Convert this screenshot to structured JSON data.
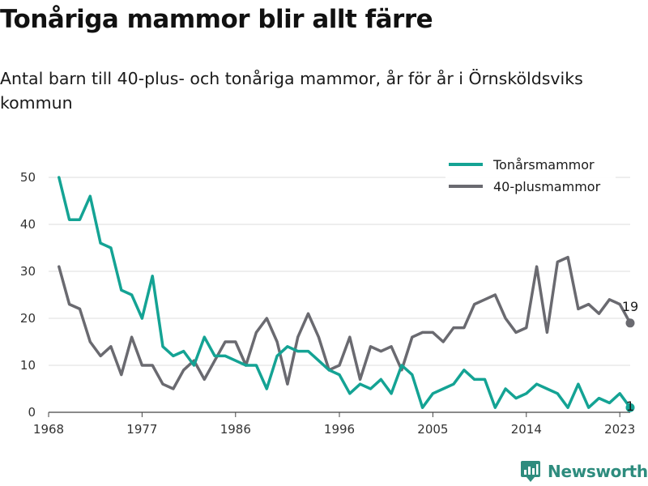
{
  "title": "Tonåriga mammor blir allt färre",
  "subtitle": "Antal barn till 40-plus- och tonåriga mammor, år för år i Örnsköldsviks kommun",
  "brand": "Newsworthy",
  "colors": {
    "teen": "#14a394",
    "forty": "#6a6a70",
    "grid": "#dcdcdc",
    "brand": "#2e8c7e"
  },
  "chart_data": {
    "type": "line",
    "title": "Tonåriga mammor blir allt färre",
    "subtitle": "Antal barn till 40-plus- och tonåriga mammor, år för år i Örnsköldsviks kommun",
    "xlabel": "",
    "ylabel": "",
    "ylim": [
      0,
      50
    ],
    "xlim": [
      1968,
      2024
    ],
    "x_ticks": [
      1968,
      1977,
      1986,
      1996,
      2005,
      2014,
      2023
    ],
    "y_ticks": [
      0,
      10,
      20,
      30,
      40,
      50
    ],
    "grid": true,
    "legend_position": "top-right",
    "x": [
      1969,
      1970,
      1971,
      1972,
      1973,
      1974,
      1975,
      1976,
      1977,
      1978,
      1979,
      1980,
      1981,
      1982,
      1983,
      1984,
      1985,
      1986,
      1987,
      1988,
      1989,
      1990,
      1991,
      1992,
      1993,
      1994,
      1995,
      1996,
      1997,
      1998,
      1999,
      2000,
      2001,
      2002,
      2003,
      2004,
      2005,
      2006,
      2007,
      2008,
      2009,
      2010,
      2011,
      2012,
      2013,
      2014,
      2015,
      2016,
      2017,
      2018,
      2019,
      2020,
      2021,
      2022,
      2023,
      2024
    ],
    "series": [
      {
        "name": "Tonårsmammor",
        "color": "#14a394",
        "values": [
          50,
          41,
          41,
          46,
          36,
          35,
          26,
          25,
          20,
          29,
          14,
          12,
          13,
          10,
          16,
          12,
          12,
          11,
          10,
          10,
          5,
          12,
          14,
          13,
          13,
          11,
          9,
          8,
          4,
          6,
          5,
          7,
          4,
          10,
          8,
          1,
          4,
          5,
          6,
          9,
          7,
          7,
          1,
          5,
          3,
          4,
          6,
          5,
          4,
          1,
          6,
          1,
          3,
          2,
          4,
          1
        ],
        "end_label": "1"
      },
      {
        "name": "40-plusmammor",
        "color": "#6a6a70",
        "values": [
          31,
          23,
          22,
          15,
          12,
          14,
          8,
          16,
          10,
          10,
          6,
          5,
          9,
          11,
          7,
          11,
          15,
          15,
          10,
          17,
          20,
          15,
          6,
          16,
          21,
          16,
          9,
          10,
          16,
          7,
          14,
          13,
          14,
          9,
          16,
          17,
          17,
          15,
          18,
          18,
          23,
          24,
          25,
          20,
          17,
          18,
          31,
          17,
          32,
          33,
          22,
          23,
          21,
          24,
          23,
          19
        ],
        "end_label": "19"
      }
    ]
  }
}
